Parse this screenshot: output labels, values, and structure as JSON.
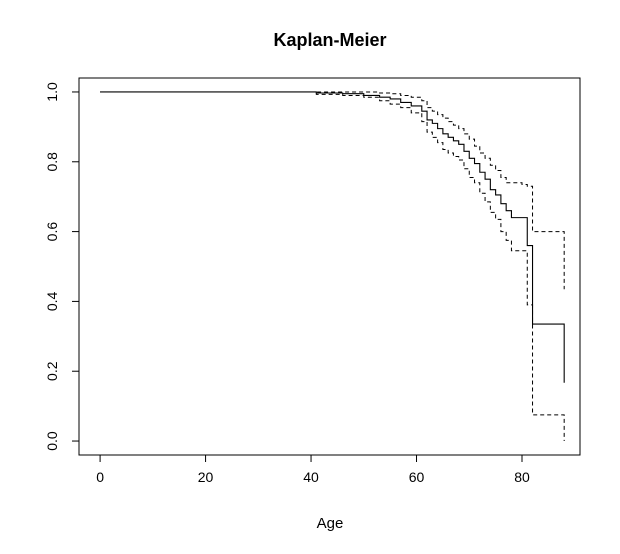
{
  "chart_data": {
    "type": "line",
    "title": "Kaplan-Meier",
    "xlabel": "Age",
    "ylabel": "",
    "xlim": [
      -4,
      91
    ],
    "ylim": [
      -0.04,
      1.04
    ],
    "x_ticks": [
      0,
      20,
      40,
      60,
      80
    ],
    "y_ticks": [
      0.0,
      0.2,
      0.4,
      0.6,
      0.8,
      1.0
    ],
    "y_tick_labels": [
      "0.0",
      "0.2",
      "0.4",
      "0.6",
      "0.8",
      "1.0"
    ],
    "grid": false,
    "legend": "none",
    "step": true,
    "series": [
      {
        "style": "solid",
        "x": [
          0,
          41,
          46,
          50,
          53,
          55,
          57,
          59,
          61,
          62,
          63,
          64,
          65,
          66,
          67,
          68,
          69,
          70,
          71,
          72,
          73,
          74,
          75,
          76,
          77,
          78,
          80,
          81,
          82,
          88
        ],
        "y": [
          1.0,
          0.997,
          0.995,
          0.99,
          0.985,
          0.98,
          0.97,
          0.96,
          0.945,
          0.92,
          0.91,
          0.895,
          0.88,
          0.87,
          0.86,
          0.85,
          0.83,
          0.81,
          0.795,
          0.77,
          0.75,
          0.72,
          0.705,
          0.68,
          0.66,
          0.64,
          0.64,
          0.56,
          0.335,
          0.167
        ]
      },
      {
        "style": "dashed",
        "x": [
          0,
          41,
          46,
          50,
          53,
          55,
          57,
          59,
          61,
          62,
          63,
          64,
          65,
          66,
          67,
          68,
          69,
          70,
          71,
          72,
          73,
          74,
          75,
          76,
          77,
          78,
          80,
          81,
          82,
          88
        ],
        "y": [
          1.0,
          1.0,
          1.0,
          1.0,
          0.997,
          0.995,
          0.99,
          0.985,
          0.975,
          0.955,
          0.945,
          0.935,
          0.925,
          0.915,
          0.905,
          0.895,
          0.88,
          0.865,
          0.845,
          0.825,
          0.81,
          0.79,
          0.775,
          0.755,
          0.74,
          0.74,
          0.735,
          0.73,
          0.6,
          0.435
        ]
      },
      {
        "style": "dashed",
        "x": [
          0,
          41,
          46,
          50,
          53,
          55,
          57,
          59,
          61,
          62,
          63,
          64,
          65,
          66,
          67,
          68,
          69,
          70,
          71,
          72,
          73,
          74,
          75,
          76,
          77,
          78,
          80,
          81,
          82,
          88
        ],
        "y": [
          1.0,
          0.993,
          0.99,
          0.985,
          0.975,
          0.965,
          0.955,
          0.94,
          0.915,
          0.885,
          0.87,
          0.855,
          0.835,
          0.825,
          0.815,
          0.805,
          0.78,
          0.755,
          0.74,
          0.71,
          0.685,
          0.655,
          0.635,
          0.6,
          0.575,
          0.545,
          0.545,
          0.39,
          0.075,
          0.0
        ]
      }
    ]
  }
}
